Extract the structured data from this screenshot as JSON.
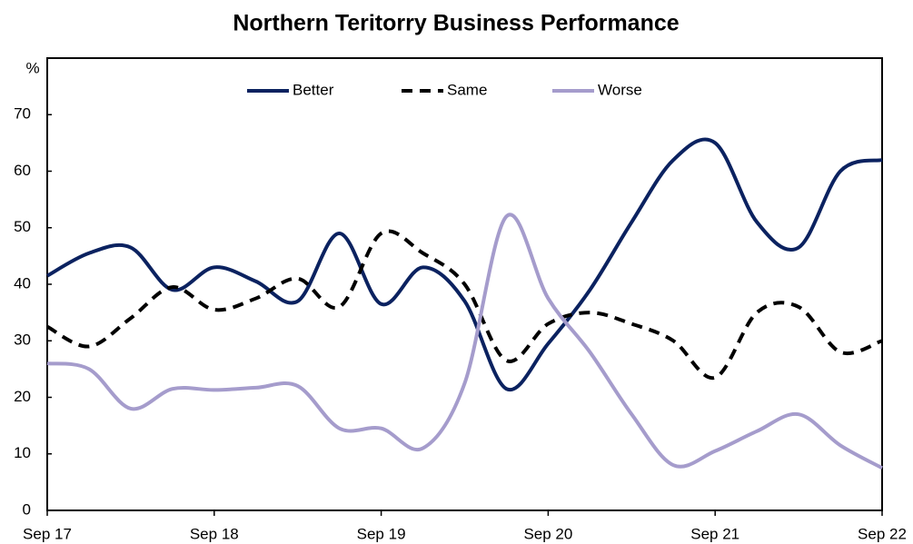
{
  "chart_data": {
    "type": "line",
    "title": "Northern Teritorry Business Performance",
    "y_label": "%",
    "categories": [
      "Sep 17",
      null,
      null,
      null,
      "Sep 18",
      null,
      null,
      null,
      "Sep 19",
      null,
      null,
      null,
      "Sep 20",
      null,
      null,
      null,
      "Sep 21",
      null,
      null,
      null,
      "Sep 22"
    ],
    "series": [
      {
        "name": "Better",
        "color": "#0b2260",
        "dash": "solid",
        "values": [
          41.5,
          45.5,
          46.5,
          39,
          43,
          40.5,
          37,
          49,
          36.5,
          43,
          37,
          21.5,
          29.5,
          39,
          51,
          62,
          65,
          51,
          46.5,
          60,
          62
        ]
      },
      {
        "name": "Same",
        "color": "#000000",
        "dash": "dashed",
        "values": [
          32.5,
          29,
          34,
          39.5,
          35.5,
          37.5,
          41,
          36,
          49,
          45.5,
          40,
          26.5,
          33,
          35,
          33,
          30,
          23.5,
          35,
          36,
          28,
          30
        ]
      },
      {
        "name": "Worse",
        "color": "#a59ccc",
        "dash": "solid",
        "values": [
          26,
          25,
          18,
          21.5,
          21.3,
          21.7,
          22,
          14.5,
          14.5,
          11,
          22.5,
          52,
          37.5,
          28,
          17,
          8,
          10.5,
          14,
          17,
          11.5,
          7.5
        ]
      }
    ],
    "ylim": [
      0,
      80
    ],
    "yticks": [
      0,
      10,
      20,
      30,
      40,
      50,
      60,
      70
    ],
    "grid": false,
    "legend": "top"
  }
}
